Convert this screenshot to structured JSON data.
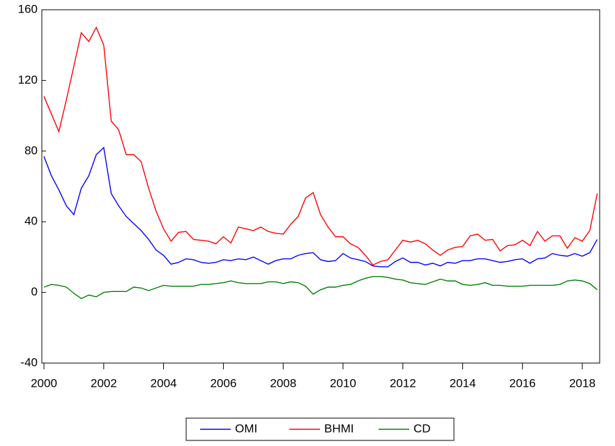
{
  "chart_data": {
    "type": "line",
    "x": [
      2000,
      2000.25,
      2000.5,
      2000.75,
      2001,
      2001.25,
      2001.5,
      2001.75,
      2002,
      2002.25,
      2002.5,
      2002.75,
      2003,
      2003.25,
      2003.5,
      2003.75,
      2004,
      2004.25,
      2004.5,
      2004.75,
      2005,
      2005.25,
      2005.5,
      2005.75,
      2006,
      2006.25,
      2006.5,
      2006.75,
      2007,
      2007.25,
      2007.5,
      2007.75,
      2008,
      2008.25,
      2008.5,
      2008.75,
      2009,
      2009.25,
      2009.5,
      2009.75,
      2010,
      2010.25,
      2010.5,
      2010.75,
      2011,
      2011.25,
      2011.5,
      2011.75,
      2012,
      2012.25,
      2012.5,
      2012.75,
      2013,
      2013.25,
      2013.5,
      2013.75,
      2014,
      2014.25,
      2014.5,
      2014.75,
      2015,
      2015.25,
      2015.5,
      2015.75,
      2016,
      2016.25,
      2016.5,
      2016.75,
      2017,
      2017.25,
      2017.5,
      2017.75,
      2018,
      2018.25,
      2018.5
    ],
    "series": [
      {
        "name": "OMI",
        "color": "#0000ff",
        "values": [
          77,
          66,
          58,
          49,
          44,
          59,
          66,
          78,
          82,
          56,
          49,
          43,
          39,
          35,
          30,
          24,
          21,
          16,
          17,
          19,
          18.5,
          17,
          16.5,
          17,
          18.5,
          18,
          19,
          18.5,
          20,
          18,
          16,
          18,
          19,
          19,
          21,
          22,
          22.5,
          18.5,
          17.5,
          18,
          22,
          19.5,
          18.5,
          17.5,
          15,
          14.5,
          14.5,
          17.5,
          19.5,
          17,
          17,
          15.5,
          16.5,
          15,
          17,
          16.5,
          18,
          18,
          19,
          19,
          18,
          17,
          17.5,
          18.5,
          19,
          16.5,
          19,
          19.5,
          22,
          21,
          20.5,
          22,
          20.5,
          22.5,
          30
        ]
      },
      {
        "name": "BHMI",
        "color": "#ff0000",
        "values": [
          111,
          101,
          91,
          109,
          128,
          147,
          142,
          150,
          140,
          97,
          92,
          78,
          78,
          74,
          59,
          46,
          36,
          29,
          34,
          34.5,
          30,
          29.5,
          29,
          27.5,
          31.5,
          28,
          37,
          36,
          35,
          37,
          34.5,
          33.5,
          33,
          38.5,
          43,
          53.5,
          56.5,
          44,
          37,
          31.5,
          31.5,
          27.5,
          25.5,
          21,
          15.5,
          17.5,
          18.5,
          24,
          29.5,
          28.5,
          29.5,
          27.5,
          24,
          21,
          24,
          25.5,
          26,
          32,
          33,
          29.5,
          30,
          23.5,
          26.5,
          27,
          29.5,
          26.5,
          34.5,
          29,
          32,
          32,
          25,
          31,
          29,
          35,
          56
        ]
      },
      {
        "name": "CD",
        "color": "#008000",
        "values": [
          3,
          4.5,
          4,
          3,
          -0.5,
          -3.5,
          -1.5,
          -2.5,
          0,
          0.5,
          0.5,
          0.5,
          3,
          2.5,
          1,
          2.5,
          4,
          3.5,
          3.5,
          3.5,
          3.5,
          4.5,
          4.5,
          5,
          5.5,
          6.5,
          5.5,
          5,
          5,
          5,
          6,
          6,
          5,
          6,
          5.5,
          3.5,
          -1,
          1.5,
          3,
          3,
          4,
          4.5,
          6.5,
          8,
          9,
          9,
          8.5,
          7.5,
          7,
          5.5,
          5,
          4.5,
          6,
          7.5,
          6.5,
          6.5,
          4.5,
          4,
          4.5,
          5.5,
          4,
          4,
          3.5,
          3.5,
          3.5,
          4,
          4,
          4,
          4,
          4.5,
          6.5,
          7,
          6.5,
          5,
          1.5
        ]
      }
    ],
    "xlim": [
      1999.93,
      2018.58
    ],
    "xticks": [
      2000,
      2002,
      2004,
      2006,
      2008,
      2010,
      2012,
      2014,
      2016,
      2018
    ],
    "ylim": [
      -40,
      160
    ],
    "yticks": [
      -40,
      0,
      40,
      80,
      120,
      160
    ]
  }
}
